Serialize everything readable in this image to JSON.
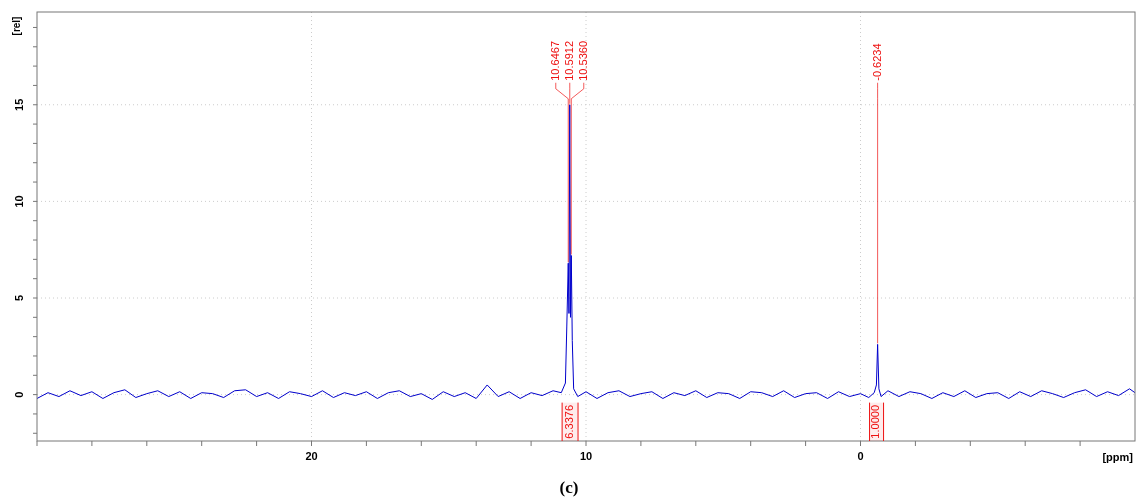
{
  "chart_data": {
    "type": "line",
    "xlabel": "[ppm]",
    "ylabel": "[rel]",
    "xlim": [
      30,
      -10
    ],
    "ylim": [
      -2.4,
      19.8
    ],
    "xticks": [
      {
        "value": 30,
        "label": null
      },
      {
        "value": 28,
        "label": null
      },
      {
        "value": 26,
        "label": null
      },
      {
        "value": 24,
        "label": null
      },
      {
        "value": 22,
        "label": null
      },
      20,
      {
        "value": 18,
        "label": null
      },
      {
        "value": 16,
        "label": null
      },
      {
        "value": 14,
        "label": null
      },
      {
        "value": 12,
        "label": null
      },
      10,
      {
        "value": 8,
        "label": null
      },
      {
        "value": 6,
        "label": null
      },
      {
        "value": 4,
        "label": null
      },
      {
        "value": 2,
        "label": null
      },
      0,
      {
        "value": -2,
        "label": null
      },
      {
        "value": -4,
        "label": null
      },
      {
        "value": -6,
        "label": null
      },
      {
        "value": -8,
        "label": null
      }
    ],
    "yticks": [
      {
        "value": -2,
        "label": null
      },
      {
        "value": -1,
        "label": null
      },
      0,
      {
        "value": 1,
        "label": null
      },
      {
        "value": 2,
        "label": null
      },
      {
        "value": 3,
        "label": null
      },
      {
        "value": 4,
        "label": null
      },
      5,
      {
        "value": 6,
        "label": null
      },
      {
        "value": 7,
        "label": null
      },
      {
        "value": 8,
        "label": null
      },
      {
        "value": 9,
        "label": null
      },
      10,
      {
        "value": 11,
        "label": null
      },
      {
        "value": 12,
        "label": null
      },
      {
        "value": 13,
        "label": null
      },
      {
        "value": 14,
        "label": null
      },
      15,
      {
        "value": 16,
        "label": null
      },
      {
        "value": 17,
        "label": null
      },
      {
        "value": 18,
        "label": null
      },
      {
        "value": 19,
        "label": null
      }
    ],
    "grid": true,
    "marker": "none",
    "line_style": "solid",
    "series": [
      {
        "color": "#0000cc",
        "x": [
          30,
          29.6,
          29.2,
          28.8,
          28.4,
          28,
          27.6,
          27.2,
          26.8,
          26.4,
          26,
          25.6,
          25.2,
          24.8,
          24.4,
          24,
          23.6,
          23.2,
          22.8,
          22.4,
          22,
          21.6,
          21.2,
          20.8,
          20.4,
          20,
          19.6,
          19.2,
          18.8,
          18.4,
          18,
          17.6,
          17.2,
          16.8,
          16.4,
          16,
          15.6,
          15.2,
          14.8,
          14.4,
          14,
          13.6,
          13.2,
          12.8,
          12.4,
          12,
          11.6,
          11.2,
          10.9,
          10.75,
          10.7,
          10.6467,
          10.62,
          10.5912,
          10.565,
          10.536,
          10.5,
          10.45,
          10.3,
          10,
          9.6,
          9.2,
          8.8,
          8.4,
          8,
          7.6,
          7.2,
          6.8,
          6.4,
          6,
          5.6,
          5.2,
          4.8,
          4.4,
          4,
          3.6,
          3.2,
          2.8,
          2.4,
          2,
          1.6,
          1.2,
          0.8,
          0.4,
          0,
          -0.3,
          -0.5,
          -0.58,
          -0.6234,
          -0.67,
          -0.75,
          -1,
          -1.4,
          -1.8,
          -2.2,
          -2.6,
          -3,
          -3.4,
          -3.8,
          -4.2,
          -4.6,
          -5,
          -5.4,
          -5.8,
          -6.2,
          -6.6,
          -7,
          -7.4,
          -7.8,
          -8.2,
          -8.6,
          -9,
          -9.4,
          -9.8,
          -10
        ],
        "values": [
          -0.2,
          0.1,
          -0.1,
          0.2,
          -0.05,
          0.15,
          -0.2,
          0.1,
          0.25,
          -0.15,
          0.05,
          0.2,
          -0.1,
          0.15,
          -0.2,
          0.1,
          0.05,
          -0.15,
          0.2,
          0.25,
          -0.1,
          0.1,
          -0.2,
          0.15,
          0.05,
          -0.1,
          0.2,
          -0.15,
          0.1,
          -0.05,
          0.15,
          -0.2,
          0.1,
          0.2,
          -0.1,
          0.05,
          -0.25,
          0.15,
          -0.1,
          0.1,
          -0.2,
          0.5,
          -0.1,
          0.15,
          -0.2,
          0.1,
          -0.05,
          0.2,
          0.1,
          0.6,
          3.5,
          6.8,
          4.2,
          15,
          4,
          7.2,
          2.8,
          0.3,
          -0.1,
          0.15,
          -0.2,
          0.1,
          0.2,
          -0.1,
          0.05,
          0.15,
          -0.2,
          0.1,
          -0.05,
          0.2,
          -0.15,
          0.1,
          0.05,
          -0.2,
          0.15,
          0.1,
          -0.1,
          0.2,
          -0.15,
          0.05,
          0.1,
          -0.2,
          0.15,
          -0.1,
          0.05,
          -0.15,
          0.1,
          0.5,
          2.6,
          0.3,
          -0.1,
          0.2,
          -0.1,
          0.15,
          0.05,
          -0.2,
          0.1,
          -0.1,
          0.2,
          -0.15,
          0.05,
          0.1,
          -0.2,
          0.15,
          -0.1,
          0.2,
          0.05,
          -0.15,
          0.1,
          0.25,
          -0.1,
          0.15,
          -0.05,
          0.3,
          0.1
        ]
      }
    ],
    "annotations": [
      {
        "text": "10.6467",
        "x": 10.6467,
        "y": 6.8
      },
      {
        "text": "10.5912",
        "x": 10.5912,
        "y": 15
      },
      {
        "text": "10.5360",
        "x": 10.536,
        "y": 7.2
      },
      {
        "text": "-0.6234",
        "x": -0.6234,
        "y": 2.6
      },
      "(c)"
    ],
    "bands": [
      {
        "axis": "x",
        "from": 10.87,
        "to": 10.29,
        "label": "6.3376",
        "color": "#ee1111"
      },
      {
        "axis": "x",
        "from": -0.33,
        "to": -0.84,
        "label": "1.0000",
        "color": "#ee1111"
      }
    ]
  }
}
